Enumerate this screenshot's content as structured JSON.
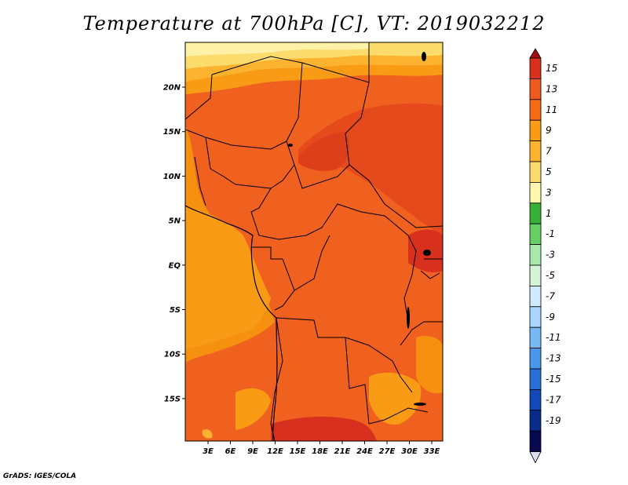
{
  "title": "Temperature at 700hPa [C], VT: 2019032212",
  "credit": "GrADS: IGES/COLA",
  "map": {
    "lon_labels": [
      "3E",
      "6E",
      "9E",
      "12E",
      "15E",
      "18E",
      "21E",
      "24E",
      "27E",
      "30E",
      "33E"
    ],
    "lat_labels": [
      "20N",
      "15N",
      "10N",
      "5N",
      "EQ",
      "5S",
      "10S",
      "15S"
    ]
  },
  "colorbar": {
    "labels": [
      "15",
      "13",
      "11",
      "9",
      "7",
      "5",
      "3",
      "1",
      "-1",
      "-3",
      "-5",
      "-7",
      "-9",
      "-11",
      "-13",
      "-15",
      "-17",
      "-19"
    ],
    "colors": [
      "#a50f15",
      "#d7301f",
      "#ef5a1e",
      "#f46d14",
      "#f99b14",
      "#fbb330",
      "#fddc6e",
      "#fff6b0",
      "#38b038",
      "#66d066",
      "#a8e8a8",
      "#d6f5d6",
      "#d0ebff",
      "#a8d6ff",
      "#78b8f5",
      "#4a96ec",
      "#2870d8",
      "#1248b8",
      "#082c8c",
      "#080a50",
      "#dcdcf5"
    ]
  }
}
